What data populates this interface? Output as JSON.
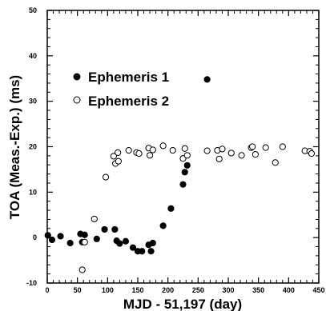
{
  "chart_data": {
    "type": "scatter",
    "title": "",
    "xlabel": "MJD - 51,197 (day)",
    "ylabel": "TOA (Meas.-Exp.) (ms)",
    "xlim": [
      0,
      450
    ],
    "ylim": [
      -10,
      50
    ],
    "x_ticks": [
      0,
      50,
      100,
      150,
      200,
      250,
      300,
      350,
      400,
      450
    ],
    "y_ticks": [
      -10,
      0,
      10,
      20,
      30,
      40,
      50
    ],
    "x_tick_labels": [
      "0",
      "50",
      "100",
      "150",
      "200",
      "250",
      "300",
      "350",
      "400",
      "450"
    ],
    "y_tick_labels": [
      "-10",
      "0",
      "10",
      "20",
      "30",
      "40",
      "50"
    ],
    "grid": false,
    "legend_position": "upper-left inside plot",
    "series": [
      {
        "name": "Ephemeris 1",
        "marker": "filled-circle",
        "points": [
          [
            1,
            0.5
          ],
          [
            8,
            -0.5
          ],
          [
            22,
            0.3
          ],
          [
            38,
            -1.2
          ],
          [
            55,
            0.8
          ],
          [
            58,
            -1.0
          ],
          [
            62,
            0.6
          ],
          [
            82,
            -0.3
          ],
          [
            95,
            1.8
          ],
          [
            112,
            1.8
          ],
          [
            115,
            -0.7
          ],
          [
            120,
            -1.3
          ],
          [
            130,
            -0.8
          ],
          [
            142,
            -2.2
          ],
          [
            150,
            -3.0
          ],
          [
            157,
            -3.0
          ],
          [
            168,
            -1.6
          ],
          [
            172,
            -3.0
          ],
          [
            175,
            -1.2
          ],
          [
            192,
            2.6
          ],
          [
            205,
            6.4
          ],
          [
            225,
            11.7
          ],
          [
            228,
            14.4
          ],
          [
            232,
            15.9
          ],
          [
            265,
            34.8
          ]
        ]
      },
      {
        "name": "Ephemeris 2",
        "marker": "open-circle",
        "points": [
          [
            58,
            -7.1
          ],
          [
            62,
            -1.0
          ],
          [
            78,
            4.1
          ],
          [
            97,
            13.3
          ],
          [
            110,
            17.9
          ],
          [
            113,
            16.3
          ],
          [
            117,
            18.7
          ],
          [
            118,
            16.8
          ],
          [
            135,
            19.2
          ],
          [
            148,
            18.7
          ],
          [
            152,
            18.5
          ],
          [
            168,
            19.7
          ],
          [
            170,
            18.1
          ],
          [
            175,
            19.3
          ],
          [
            192,
            20.2
          ],
          [
            208,
            19.2
          ],
          [
            225,
            17.4
          ],
          [
            228,
            19.6
          ],
          [
            232,
            18.1
          ],
          [
            265,
            19.1
          ],
          [
            282,
            19.2
          ],
          [
            285,
            17.3
          ],
          [
            290,
            19.5
          ],
          [
            305,
            18.6
          ],
          [
            322,
            18.1
          ],
          [
            338,
            19.8
          ],
          [
            340,
            20.0
          ],
          [
            345,
            18.3
          ],
          [
            362,
            19.8
          ],
          [
            378,
            16.5
          ],
          [
            390,
            20.0
          ],
          [
            427,
            19.1
          ],
          [
            435,
            19.0
          ],
          [
            438,
            18.5
          ]
        ]
      }
    ]
  }
}
